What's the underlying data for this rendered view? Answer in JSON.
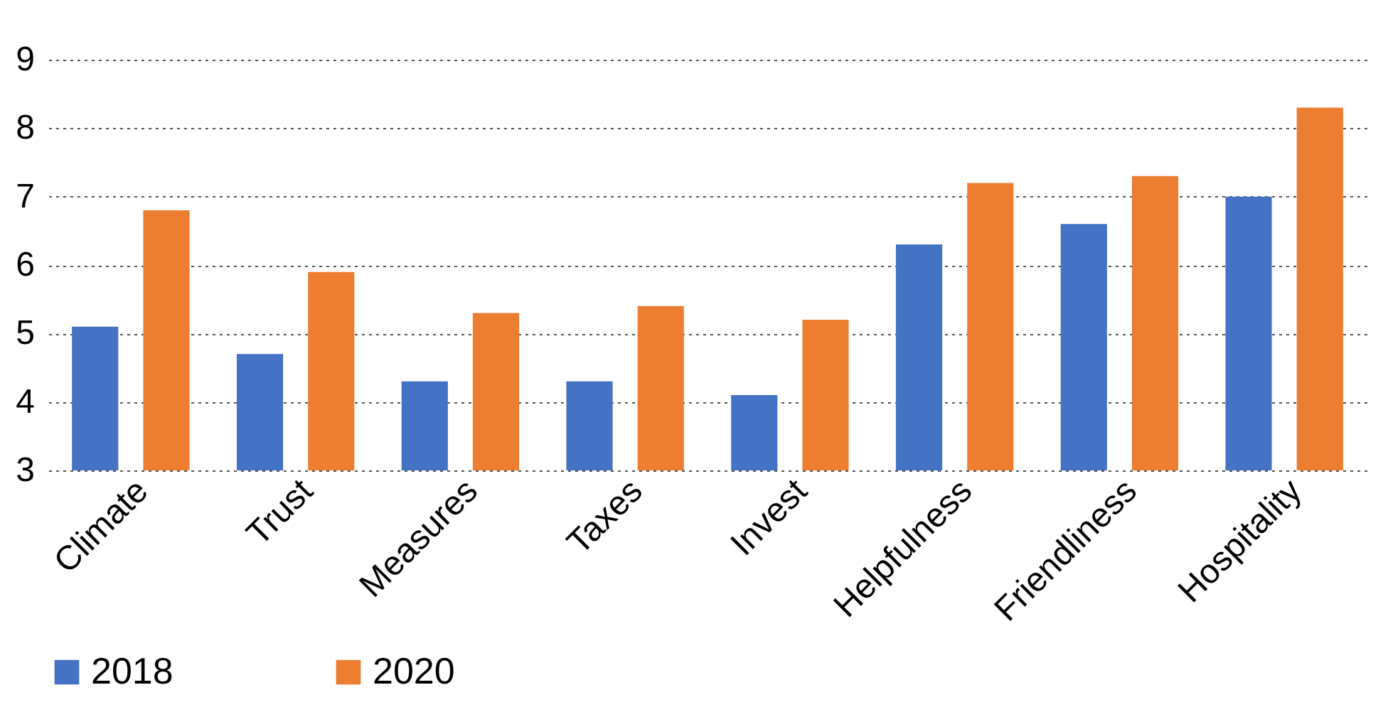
{
  "chart_data": {
    "type": "bar",
    "categories": [
      "Climate",
      "Trust",
      "Measures",
      "Taxes",
      "Invest",
      "Helpfulness",
      "Friendliness",
      "Hospitality"
    ],
    "series": [
      {
        "name": "2018",
        "color": "#4472c4",
        "values": [
          5.1,
          4.7,
          4.3,
          4.3,
          4.1,
          6.3,
          6.6,
          7.0
        ]
      },
      {
        "name": "2020",
        "color": "#ed7d31",
        "values": [
          6.8,
          5.9,
          5.3,
          5.4,
          5.2,
          7.2,
          7.3,
          8.3
        ]
      }
    ],
    "ylim": [
      3,
      9
    ],
    "yticks": [
      3,
      4,
      5,
      6,
      7,
      8,
      9
    ],
    "grid": "y",
    "legend": "bottom"
  }
}
